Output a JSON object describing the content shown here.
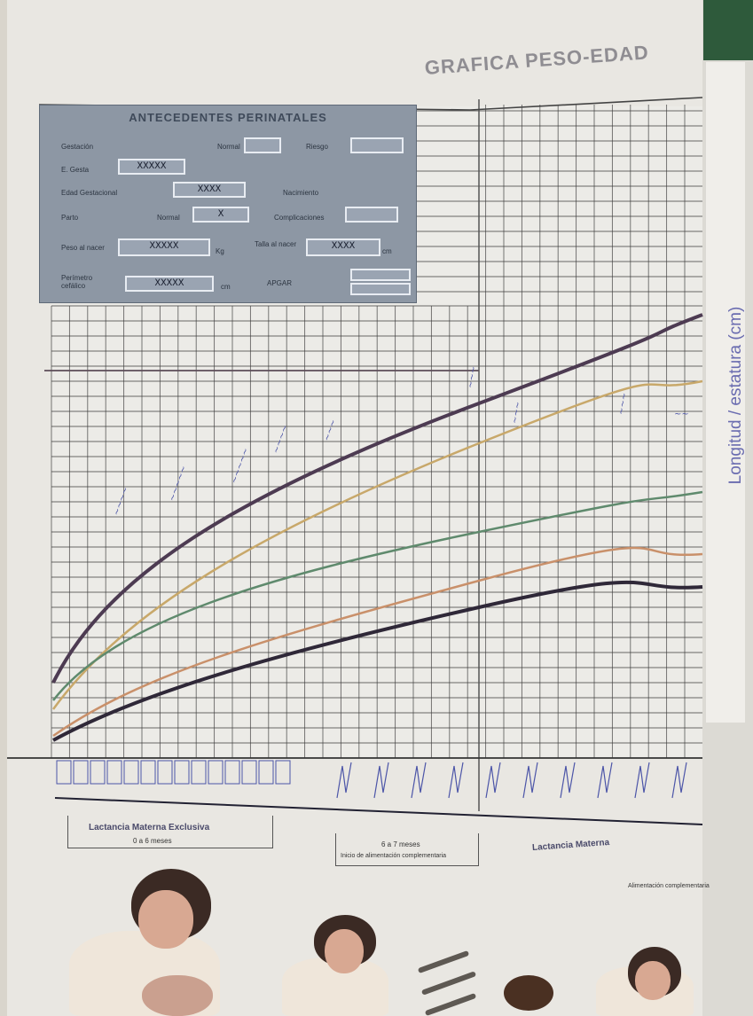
{
  "document": {
    "title": "GRAFICA PESO-EDAD",
    "y_axis_label": "Longitud / estatura (cm)"
  },
  "perinatal_panel": {
    "heading": "ANTECEDENTES PERINATALES",
    "rows": [
      {
        "label": "Gestación",
        "field_a": "Normal",
        "field_b": "Riesgo"
      },
      {
        "label": "E. Gesta",
        "value": "XXXXX"
      },
      {
        "label": "Edad Gestacional",
        "value": "XXXX",
        "field_b": "Nacimiento"
      },
      {
        "label": "Parto",
        "field_a": "Normal",
        "value": "X",
        "field_b": "Complicaciones"
      },
      {
        "label": "Peso al nacer",
        "value": "XXXXX",
        "unit": "Kg",
        "label_b": "Talla al nacer",
        "value_b": "XXXX",
        "unit_b": "cm"
      },
      {
        "label": "Perímetro cefálico",
        "value": "XXXXX",
        "unit": "cm",
        "label_b": "APGAR"
      }
    ]
  },
  "bottom_sections": {
    "left_title": "Lactancia Materna Exclusiva",
    "left_sub": "0 a 6 meses",
    "middle_sub": "6 a 7 meses",
    "middle_note": "Inicio de alimentación complementaria",
    "right_title": "Lactancia Materna",
    "right_note": "Alimentación complementaria"
  },
  "colors": {
    "curve_upper_dark": "#4d3b52",
    "curve_yellow": "#c8a86a",
    "curve_green": "#5f8a6d",
    "curve_orange": "#c9906a",
    "curve_lower_dark": "#2f2838",
    "grid": "#3c3c3c",
    "handwriting": "#4c55a8"
  },
  "icons": {
    "photos": [
      "mother-breastfeeding-photo",
      "mother-feeding-photo",
      "spoons-photo",
      "bowl-photo",
      "mother-child-photo"
    ]
  }
}
